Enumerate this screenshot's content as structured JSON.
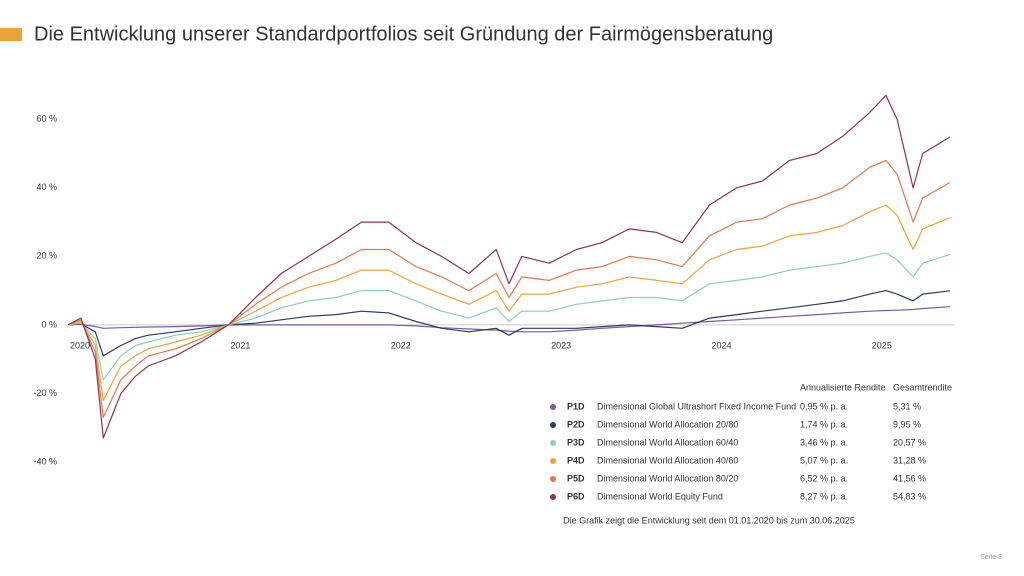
{
  "chart_data": {
    "type": "line",
    "title": "Die Entwicklung unserer Standardportfolios seit Gründung der Fairmögensberatung",
    "x": [
      2020.0,
      2020.08,
      2020.17,
      2020.22,
      2020.33,
      2020.42,
      2020.5,
      2020.67,
      2020.83,
      2021.0,
      2021.17,
      2021.33,
      2021.5,
      2021.67,
      2021.83,
      2022.0,
      2022.17,
      2022.33,
      2022.5,
      2022.67,
      2022.75,
      2022.83,
      2023.0,
      2023.17,
      2023.33,
      2023.5,
      2023.67,
      2023.83,
      2024.0,
      2024.17,
      2024.33,
      2024.5,
      2024.67,
      2024.83,
      2025.0,
      2025.1,
      2025.17,
      2025.27,
      2025.33,
      2025.5
    ],
    "xlim": [
      2020,
      2025.5
    ],
    "xticks": [
      2020,
      2021,
      2022,
      2023,
      2024,
      2025
    ],
    "ylim": [
      -40,
      70
    ],
    "yticks": [
      {
        "value": -40,
        "label": "-40 %"
      },
      {
        "value": -20,
        "label": "-20 %"
      },
      {
        "value": 0,
        "label": "0 %"
      },
      {
        "value": 20,
        "label": "20 %"
      },
      {
        "value": 40,
        "label": "40 %"
      },
      {
        "value": 60,
        "label": "60 %"
      }
    ],
    "legend_header": [
      "Annualisierte Rendite",
      "Gesamtrendite"
    ],
    "series": [
      {
        "name": "P1D",
        "fund": "Dimensional Global Ultrashort Fixed Income Fund",
        "annualized": "0,95 % p. a.",
        "total": "5,31 %",
        "color": "#7a5aa8",
        "values": [
          0,
          0.2,
          -0.5,
          -1,
          -0.8,
          -0.7,
          -0.6,
          -0.5,
          -0.3,
          0,
          0,
          0,
          0,
          0,
          0,
          0,
          -0.3,
          -0.8,
          -1.2,
          -1.5,
          -1.8,
          -2,
          -2,
          -1.5,
          -1,
          -0.5,
          0,
          0.5,
          1,
          1.5,
          2,
          2.5,
          3,
          3.5,
          4,
          4.2,
          4.3,
          4.5,
          4.8,
          5.31
        ]
      },
      {
        "name": "P2D",
        "fund": "Dimensional World Allocation 20/80",
        "annualized": "1,74 % p. a.",
        "total": "9,95 %",
        "color": "#2d3a63",
        "values": [
          0,
          0.3,
          -2,
          -9,
          -6,
          -4,
          -3,
          -2,
          -1,
          0,
          0.5,
          1.5,
          2.5,
          3,
          4,
          3.5,
          1,
          -1,
          -2,
          -1,
          -3,
          -1,
          -1,
          -1,
          -0.5,
          0,
          -0.5,
          -1,
          2,
          3,
          4,
          5,
          6,
          7,
          9,
          10,
          9,
          7,
          9,
          9.95
        ]
      },
      {
        "name": "P3D",
        "fund": "Dimensional World Allocation 60/40",
        "annualized": "3,46 % p. a.",
        "total": "20,57 %",
        "color": "#8fcfb2",
        "values": [
          0,
          0.5,
          -4,
          -16,
          -9,
          -6,
          -5,
          -3,
          -2,
          0,
          2,
          5,
          7,
          8,
          10,
          10,
          7,
          4,
          2,
          5,
          1,
          4,
          4,
          6,
          7,
          8,
          8,
          7,
          12,
          13,
          14,
          16,
          17,
          18,
          20,
          21,
          19,
          14,
          18,
          20.57
        ]
      },
      {
        "name": "P4D",
        "fund": "Dimensional World Allocation 40/60",
        "annualized": "5,07 % p. a.",
        "total": "31,28 %",
        "color": "#e9a53c",
        "values": [
          0,
          1,
          -6,
          -22,
          -12,
          -9,
          -7,
          -5,
          -3,
          0,
          4,
          8,
          11,
          13,
          16,
          16,
          12,
          9,
          6,
          10,
          4,
          9,
          9,
          11,
          12,
          14,
          13,
          12,
          19,
          22,
          23,
          26,
          27,
          29,
          33,
          35,
          32,
          22,
          28,
          31.28
        ]
      },
      {
        "name": "P5D",
        "fund": "Dimensional World Allocation 80/20",
        "annualized": "6,52 % p. a.",
        "total": "41,56 %",
        "color": "#e0794f",
        "values": [
          0,
          1.5,
          -8,
          -27,
          -16,
          -12,
          -9,
          -7,
          -4,
          0,
          6,
          11,
          15,
          18,
          22,
          22,
          17,
          14,
          10,
          15,
          8,
          14,
          13,
          16,
          17,
          20,
          19,
          17,
          26,
          30,
          31,
          35,
          37,
          40,
          46,
          48,
          44,
          30,
          37,
          41.56
        ]
      },
      {
        "name": "P6D",
        "fund": "Dimensional World Equity Fund",
        "annualized": "8,27 % p. a.",
        "total": "54,83 %",
        "color": "#8c3550",
        "values": [
          0,
          2,
          -10,
          -33,
          -20,
          -15,
          -12,
          -9,
          -5,
          0,
          8,
          15,
          20,
          25,
          30,
          30,
          24,
          20,
          15,
          22,
          12,
          20,
          18,
          22,
          24,
          28,
          27,
          24,
          35,
          40,
          42,
          48,
          50,
          55,
          62,
          67,
          60,
          40,
          50,
          54.83
        ]
      }
    ],
    "note": "Die Grafik zeigt die Entwicklung seit dem 01.01.2020 bis zum 30.06.2025",
    "page": "Seite 8"
  }
}
